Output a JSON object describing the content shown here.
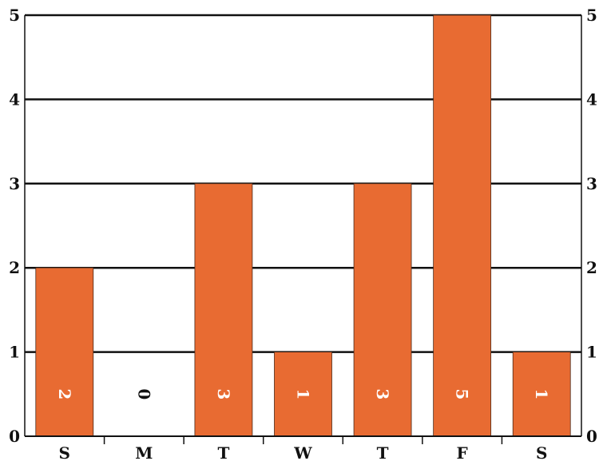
{
  "chart_data": {
    "type": "bar",
    "categories": [
      "S",
      "M",
      "T",
      "W",
      "T",
      "F",
      "S"
    ],
    "values": [
      2,
      0,
      3,
      1,
      3,
      5,
      1
    ],
    "data_labels": [
      "2",
      "0",
      "3",
      "1",
      "3",
      "5",
      "1"
    ],
    "ylim": [
      0,
      5
    ],
    "yticks": [
      "0",
      "1",
      "2",
      "3",
      "4",
      "5"
    ],
    "y_axis_both_sides": true,
    "grid": "horizontal",
    "data_label_rotation": "rotated 90 degrees",
    "colors": {
      "bar": "#E86B32",
      "bar_label": "#FFFFFF",
      "zero_label": "#111111",
      "grid": "#111111"
    }
  }
}
